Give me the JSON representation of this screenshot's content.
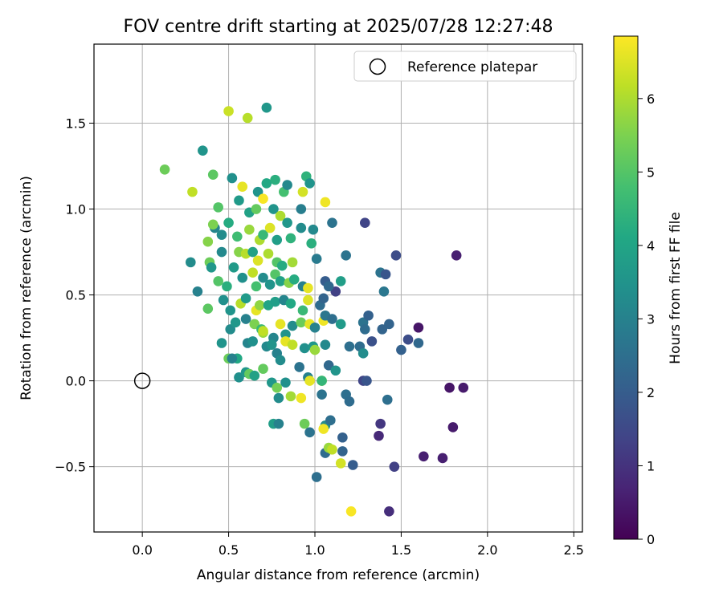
{
  "chart_data": {
    "type": "scatter",
    "title": "FOV centre drift starting at 2025/07/28 12:27:48",
    "xlabel": "Angular distance from reference (arcmin)",
    "ylabel": "Rotation from reference (arcmin)",
    "xlim": [
      -0.28,
      2.55
    ],
    "ylim": [
      -0.88,
      1.96
    ],
    "xticks": [
      0.0,
      0.5,
      1.0,
      1.5,
      2.0,
      2.5
    ],
    "xtick_labels": [
      "0.0",
      "0.5",
      "1.0",
      "1.5",
      "2.0",
      "2.5"
    ],
    "yticks": [
      -0.5,
      0.0,
      0.5,
      1.0,
      1.5
    ],
    "ytick_labels": [
      "−0.5",
      "0.0",
      "0.5",
      "1.0",
      "1.5"
    ],
    "grid": true,
    "legend": {
      "position": "upper-right",
      "entries": [
        "Reference platepar"
      ]
    },
    "colorbar": {
      "label": "Hours from first FF file",
      "colormap": "viridis",
      "range": [
        0,
        6.85
      ],
      "ticks": [
        0,
        1,
        2,
        3,
        4,
        5,
        6
      ],
      "tick_labels": [
        "0",
        "1",
        "2",
        "3",
        "4",
        "5",
        "6"
      ]
    },
    "reference": {
      "x": 0.0,
      "y": 0.0
    },
    "points": [
      [
        0.5,
        1.57,
        6.3
      ],
      [
        0.61,
        1.53,
        6.1
      ],
      [
        0.72,
        1.59,
        3.6
      ],
      [
        0.35,
        1.34,
        3.5
      ],
      [
        0.13,
        1.23,
        5.3
      ],
      [
        0.41,
        1.2,
        5.1
      ],
      [
        0.29,
        1.1,
        6.2
      ],
      [
        0.52,
        1.18,
        3.4
      ],
      [
        0.58,
        1.13,
        6.6
      ],
      [
        0.56,
        1.05,
        3.7
      ],
      [
        0.67,
        1.1,
        3.5
      ],
      [
        0.72,
        1.15,
        4.1
      ],
      [
        0.77,
        1.17,
        4.3
      ],
      [
        0.82,
        1.1,
        4.8
      ],
      [
        0.84,
        1.14,
        3.2
      ],
      [
        0.95,
        1.19,
        4.4
      ],
      [
        0.97,
        1.15,
        3.5
      ],
      [
        0.93,
        1.1,
        6.4
      ],
      [
        1.06,
        1.04,
        6.7
      ],
      [
        0.44,
        1.01,
        5.0
      ],
      [
        0.5,
        0.92,
        4.2
      ],
      [
        0.62,
        0.98,
        3.9
      ],
      [
        0.66,
        1.0,
        5.2
      ],
      [
        0.7,
        1.06,
        6.8
      ],
      [
        0.76,
        1.0,
        3.5
      ],
      [
        0.8,
        0.96,
        6.0
      ],
      [
        0.84,
        0.92,
        3.6
      ],
      [
        0.92,
        1.0,
        2.9
      ],
      [
        0.99,
        0.88,
        3.2
      ],
      [
        1.1,
        0.92,
        2.6
      ],
      [
        1.29,
        0.92,
        1.4
      ],
      [
        0.42,
        0.89,
        3.1
      ],
      [
        0.46,
        0.85,
        3.3
      ],
      [
        0.41,
        0.91,
        5.5
      ],
      [
        0.38,
        0.81,
        5.6
      ],
      [
        0.55,
        0.84,
        4.7
      ],
      [
        0.62,
        0.88,
        5.8
      ],
      [
        0.68,
        0.82,
        6.0
      ],
      [
        0.7,
        0.85,
        4.6
      ],
      [
        0.74,
        0.89,
        6.5
      ],
      [
        0.78,
        0.82,
        3.8
      ],
      [
        0.86,
        0.83,
        4.4
      ],
      [
        0.92,
        0.89,
        3.3
      ],
      [
        0.98,
        0.8,
        4.3
      ],
      [
        0.28,
        0.69,
        3.3
      ],
      [
        0.39,
        0.69,
        5.3
      ],
      [
        0.46,
        0.75,
        3.2
      ],
      [
        0.56,
        0.75,
        5.6
      ],
      [
        0.6,
        0.74,
        6.1
      ],
      [
        0.64,
        0.75,
        3.9
      ],
      [
        0.67,
        0.7,
        6.5
      ],
      [
        0.73,
        0.74,
        6.0
      ],
      [
        0.78,
        0.69,
        5.0
      ],
      [
        0.81,
        0.67,
        4.2
      ],
      [
        0.87,
        0.69,
        5.9
      ],
      [
        1.01,
        0.71,
        2.8
      ],
      [
        1.18,
        0.73,
        2.6
      ],
      [
        1.47,
        0.73,
        1.6
      ],
      [
        1.82,
        0.73,
        0.6
      ],
      [
        0.32,
        0.52,
        3.0
      ],
      [
        0.4,
        0.66,
        3.6
      ],
      [
        0.44,
        0.58,
        5.0
      ],
      [
        0.49,
        0.55,
        4.3
      ],
      [
        0.53,
        0.66,
        3.7
      ],
      [
        0.58,
        0.6,
        3.4
      ],
      [
        0.64,
        0.63,
        6.2
      ],
      [
        0.66,
        0.55,
        4.8
      ],
      [
        0.7,
        0.6,
        3.3
      ],
      [
        0.74,
        0.56,
        3.5
      ],
      [
        0.77,
        0.62,
        5.0
      ],
      [
        0.8,
        0.58,
        3.9
      ],
      [
        0.85,
        0.57,
        5.6
      ],
      [
        0.88,
        0.59,
        4.2
      ],
      [
        0.93,
        0.55,
        3.0
      ],
      [
        0.96,
        0.54,
        6.6
      ],
      [
        1.06,
        0.58,
        2.0
      ],
      [
        1.12,
        0.52,
        1.3
      ],
      [
        1.15,
        0.58,
        3.8
      ],
      [
        1.38,
        0.63,
        2.6
      ],
      [
        1.41,
        0.62,
        1.8
      ],
      [
        0.38,
        0.42,
        5.1
      ],
      [
        0.47,
        0.47,
        3.4
      ],
      [
        0.51,
        0.41,
        3.5
      ],
      [
        0.57,
        0.45,
        6.1
      ],
      [
        0.6,
        0.48,
        3.7
      ],
      [
        0.66,
        0.41,
        6.6
      ],
      [
        0.68,
        0.44,
        5.7
      ],
      [
        0.73,
        0.44,
        4.0
      ],
      [
        0.77,
        0.46,
        3.8
      ],
      [
        0.82,
        0.47,
        3.1
      ],
      [
        0.86,
        0.45,
        4.1
      ],
      [
        0.93,
        0.41,
        4.6
      ],
      [
        0.96,
        0.47,
        6.5
      ],
      [
        1.03,
        0.44,
        2.4
      ],
      [
        1.05,
        0.48,
        2.2
      ],
      [
        1.08,
        0.55,
        2.3
      ],
      [
        1.4,
        0.52,
        2.7
      ],
      [
        0.51,
        0.3,
        3.3
      ],
      [
        0.54,
        0.34,
        3.6
      ],
      [
        0.6,
        0.36,
        3.0
      ],
      [
        0.65,
        0.33,
        5.5
      ],
      [
        0.69,
        0.3,
        4.6
      ],
      [
        0.7,
        0.28,
        5.8
      ],
      [
        0.76,
        0.25,
        3.1
      ],
      [
        0.8,
        0.33,
        6.6
      ],
      [
        0.83,
        0.27,
        3.5
      ],
      [
        0.87,
        0.32,
        3.3
      ],
      [
        0.92,
        0.34,
        5.3
      ],
      [
        0.97,
        0.33,
        6.6
      ],
      [
        1.0,
        0.31,
        3.0
      ],
      [
        1.05,
        0.35,
        6.7
      ],
      [
        1.06,
        0.38,
        2.7
      ],
      [
        1.1,
        0.36,
        2.5
      ],
      [
        1.15,
        0.33,
        3.7
      ],
      [
        1.28,
        0.34,
        2.6
      ],
      [
        1.29,
        0.3,
        2.4
      ],
      [
        1.31,
        0.38,
        2.1
      ],
      [
        1.39,
        0.3,
        2.2
      ],
      [
        1.43,
        0.33,
        2.2
      ],
      [
        1.6,
        0.31,
        0.4
      ],
      [
        0.46,
        0.22,
        3.5
      ],
      [
        0.5,
        0.13,
        5.3
      ],
      [
        0.55,
        0.13,
        4.1
      ],
      [
        0.61,
        0.22,
        3.1
      ],
      [
        0.64,
        0.23,
        3.4
      ],
      [
        0.7,
        0.29,
        6.2
      ],
      [
        0.72,
        0.2,
        3.2
      ],
      [
        0.75,
        0.21,
        3.5
      ],
      [
        0.78,
        0.16,
        3.0
      ],
      [
        0.8,
        0.12,
        3.3
      ],
      [
        0.83,
        0.23,
        6.6
      ],
      [
        0.87,
        0.21,
        6.2
      ],
      [
        0.94,
        0.19,
        3.4
      ],
      [
        0.99,
        0.2,
        3.6
      ],
      [
        1.0,
        0.18,
        5.8
      ],
      [
        1.06,
        0.21,
        3.2
      ],
      [
        1.2,
        0.2,
        2.5
      ],
      [
        1.26,
        0.2,
        2.4
      ],
      [
        1.28,
        0.16,
        3.3
      ],
      [
        1.33,
        0.23,
        1.7
      ],
      [
        1.5,
        0.18,
        2.1
      ],
      [
        1.54,
        0.24,
        1.6
      ],
      [
        1.6,
        0.22,
        2.3
      ],
      [
        0.52,
        0.13,
        3.0
      ],
      [
        0.56,
        0.02,
        3.4
      ],
      [
        0.6,
        0.05,
        3.6
      ],
      [
        0.62,
        0.04,
        5.2
      ],
      [
        0.65,
        0.03,
        3.9
      ],
      [
        0.7,
        0.07,
        5.2
      ],
      [
        0.75,
        -0.01,
        3.6
      ],
      [
        0.78,
        -0.04,
        5.4
      ],
      [
        0.83,
        -0.01,
        3.4
      ],
      [
        0.91,
        0.08,
        2.6
      ],
      [
        0.96,
        0.02,
        3.0
      ],
      [
        0.97,
        0.0,
        6.6
      ],
      [
        1.04,
        0.0,
        6.2
      ],
      [
        1.04,
        0.0,
        4.5
      ],
      [
        1.08,
        0.09,
        2.3
      ],
      [
        1.12,
        0.06,
        3.5
      ],
      [
        1.28,
        0.0,
        1.4
      ],
      [
        1.3,
        0.0,
        1.8
      ],
      [
        0.79,
        -0.1,
        3.3
      ],
      [
        0.86,
        -0.09,
        5.9
      ],
      [
        0.92,
        -0.1,
        6.7
      ],
      [
        1.04,
        -0.08,
        2.6
      ],
      [
        1.18,
        -0.08,
        2.5
      ],
      [
        1.2,
        -0.12,
        2.4
      ],
      [
        1.42,
        -0.11,
        2.5
      ],
      [
        1.78,
        -0.04,
        0.4
      ],
      [
        1.86,
        -0.04,
        0.5
      ],
      [
        0.76,
        -0.25,
        3.8
      ],
      [
        0.79,
        -0.25,
        3.0
      ],
      [
        0.94,
        -0.25,
        5.3
      ],
      [
        0.97,
        -0.3,
        2.6
      ],
      [
        1.06,
        -0.26,
        3.3
      ],
      [
        1.05,
        -0.28,
        6.7
      ],
      [
        1.09,
        -0.23,
        2.5
      ],
      [
        1.16,
        -0.33,
        2.1
      ],
      [
        1.38,
        -0.25,
        1.1
      ],
      [
        1.37,
        -0.32,
        0.8
      ],
      [
        1.8,
        -0.27,
        0.5
      ],
      [
        1.06,
        -0.42,
        2.4
      ],
      [
        1.08,
        -0.39,
        5.8
      ],
      [
        1.1,
        -0.4,
        6.2
      ],
      [
        1.16,
        -0.41,
        2.2
      ],
      [
        1.15,
        -0.48,
        6.4
      ],
      [
        1.22,
        -0.49,
        2.0
      ],
      [
        1.46,
        -0.5,
        1.3
      ],
      [
        1.63,
        -0.44,
        0.6
      ],
      [
        1.74,
        -0.45,
        0.6
      ],
      [
        1.01,
        -0.56,
        2.5
      ],
      [
        1.21,
        -0.76,
        6.8
      ],
      [
        1.43,
        -0.76,
        0.9
      ]
    ]
  }
}
